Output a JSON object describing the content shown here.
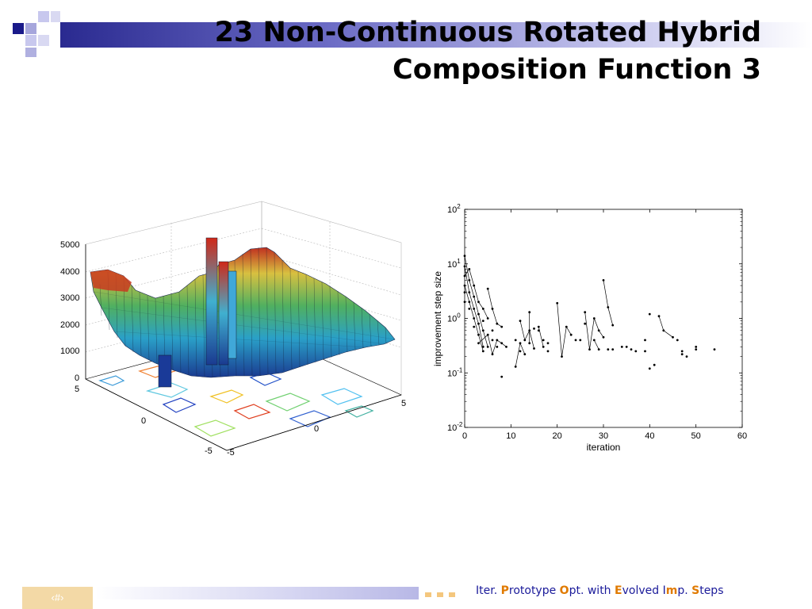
{
  "slide": {
    "title_line1": "23 Non-Continuous Rotated Hybrid",
    "title_line2": "Composition Function 3",
    "slide_number": "‹#›",
    "footer": {
      "parts": [
        {
          "text": "Iter. ",
          "hl": false
        },
        {
          "text": "P",
          "hl": true
        },
        {
          "text": "rototype ",
          "hl": false
        },
        {
          "text": "O",
          "hl": true
        },
        {
          "text": "pt. with ",
          "hl": false
        },
        {
          "text": "E",
          "hl": true
        },
        {
          "text": "volved ",
          "hl": false
        },
        {
          "text": "I",
          "hl": false
        },
        {
          "text": "m",
          "hl": true
        },
        {
          "text": "p. ",
          "hl": false
        },
        {
          "text": "S",
          "hl": true
        },
        {
          "text": "teps",
          "hl": false
        }
      ]
    },
    "colors": {
      "accent": "#1a1a9a",
      "highlight": "#e07a00",
      "band": "#2a2a90"
    }
  },
  "surface_plot": {
    "type": "surface3d",
    "z_ticks": [
      "5000",
      "4000",
      "3000",
      "2000",
      "1000",
      "0"
    ],
    "x_ticks": [
      "5",
      "0",
      "-5"
    ],
    "y_ticks": [
      "5",
      "0",
      "-5"
    ]
  },
  "chart_data": {
    "type": "scatter",
    "xlabel": "iteration",
    "ylabel": "improvement step size",
    "xlim": [
      0,
      60
    ],
    "ylim": [
      0.01,
      100
    ],
    "yscale": "log",
    "x_ticks": [
      "0",
      "10",
      "20",
      "30",
      "40",
      "50",
      "60"
    ],
    "y_ticks": [
      {
        "base": "10",
        "exp": "2"
      },
      {
        "base": "10",
        "exp": "1"
      },
      {
        "base": "10",
        "exp": "0"
      },
      {
        "base": "10",
        "exp": "-1"
      },
      {
        "base": "10",
        "exp": "-2"
      }
    ],
    "series": [
      {
        "points": [
          [
            0,
            14
          ],
          [
            0,
            9
          ],
          [
            0,
            6
          ],
          [
            0,
            4
          ],
          [
            0,
            3
          ],
          [
            0,
            2
          ],
          [
            1,
            8
          ],
          [
            1,
            5
          ],
          [
            1,
            3
          ],
          [
            1,
            2
          ],
          [
            1,
            1.5
          ],
          [
            2,
            4
          ],
          [
            2,
            2.5
          ],
          [
            2,
            1.5
          ],
          [
            2,
            1
          ],
          [
            2,
            0.7
          ],
          [
            3,
            2
          ],
          [
            3,
            1.2
          ],
          [
            3,
            0.8
          ],
          [
            3,
            0.5
          ],
          [
            3,
            0.35
          ],
          [
            4,
            1.5
          ],
          [
            4,
            0.9
          ],
          [
            4,
            0.6
          ],
          [
            4,
            0.3
          ],
          [
            4,
            0.25
          ],
          [
            5,
            3.5
          ],
          [
            5,
            1
          ],
          [
            5,
            0.5
          ],
          [
            5,
            0.3
          ],
          [
            6,
            1.5
          ],
          [
            6,
            0.6
          ],
          [
            6,
            0.4
          ],
          [
            6,
            0.22
          ],
          [
            7,
            0.8
          ],
          [
            7,
            0.4
          ],
          [
            7,
            0.3
          ],
          [
            8,
            0.7
          ],
          [
            8,
            0.35
          ],
          [
            8,
            0.085
          ],
          [
            9,
            0.3
          ],
          [
            11,
            0.13
          ],
          [
            11,
            0.4
          ],
          [
            12,
            0.9
          ],
          [
            12,
            0.35
          ],
          [
            12,
            0.25
          ],
          [
            13,
            0.22
          ],
          [
            13,
            0.4
          ],
          [
            14,
            1.3
          ],
          [
            14,
            0.6
          ],
          [
            14,
            0.35
          ],
          [
            15,
            0.65
          ],
          [
            15,
            0.28
          ],
          [
            16,
            0.7
          ],
          [
            16,
            0.6
          ],
          [
            17,
            0.4
          ],
          [
            17,
            0.3
          ],
          [
            18,
            0.35
          ],
          [
            18,
            0.25
          ],
          [
            20,
            1.9
          ],
          [
            21,
            0.2
          ],
          [
            22,
            0.7
          ],
          [
            23,
            0.5
          ],
          [
            24,
            0.4
          ],
          [
            25,
            0.4
          ],
          [
            26,
            1.3
          ],
          [
            26,
            0.8
          ],
          [
            27,
            0.27
          ],
          [
            28,
            1
          ],
          [
            28,
            0.4
          ],
          [
            29,
            0.6
          ],
          [
            29,
            0.27
          ],
          [
            30,
            5
          ],
          [
            30,
            0.45
          ],
          [
            31,
            1.6
          ],
          [
            31,
            0.27
          ],
          [
            32,
            0.27
          ],
          [
            32,
            0.75
          ],
          [
            34,
            0.3
          ],
          [
            35,
            0.3
          ],
          [
            36,
            0.27
          ],
          [
            37,
            0.25
          ],
          [
            39,
            0.25
          ],
          [
            39,
            0.4
          ],
          [
            40,
            1.2
          ],
          [
            40,
            0.12
          ],
          [
            41,
            0.14
          ],
          [
            42,
            1.1
          ],
          [
            43,
            0.6
          ],
          [
            45,
            0.45
          ],
          [
            46,
            0.4
          ],
          [
            47,
            0.22
          ],
          [
            47,
            0.25
          ],
          [
            48,
            0.2
          ],
          [
            50,
            0.3
          ],
          [
            50,
            0.27
          ],
          [
            54,
            0.27
          ]
        ]
      }
    ],
    "segments": [
      [
        [
          0,
          14
        ],
        [
          1,
          5
        ],
        [
          2,
          2.5
        ],
        [
          3,
          1.2
        ],
        [
          4,
          0.6
        ],
        [
          5,
          0.3
        ]
      ],
      [
        [
          0,
          9
        ],
        [
          1,
          3
        ],
        [
          2,
          1.5
        ],
        [
          3,
          0.8
        ],
        [
          4,
          0.3
        ]
      ],
      [
        [
          0,
          6
        ],
        [
          1,
          8
        ],
        [
          2,
          4
        ],
        [
          3,
          2
        ],
        [
          4,
          1.5
        ],
        [
          5,
          1
        ]
      ],
      [
        [
          0,
          4
        ],
        [
          1,
          2
        ],
        [
          2,
          1
        ],
        [
          3,
          0.5
        ],
        [
          4,
          0.25
        ]
      ],
      [
        [
          5,
          3.5
        ],
        [
          6,
          1.5
        ],
        [
          7,
          0.8
        ],
        [
          8,
          0.7
        ]
      ],
      [
        [
          3,
          0.35
        ],
        [
          5,
          0.5
        ],
        [
          6,
          0.22
        ],
        [
          7,
          0.4
        ],
        [
          8,
          0.35
        ],
        [
          9,
          0.3
        ]
      ],
      [
        [
          11,
          0.13
        ],
        [
          12,
          0.35
        ],
        [
          13,
          0.22
        ]
      ],
      [
        [
          12,
          0.9
        ],
        [
          13,
          0.4
        ],
        [
          14,
          0.6
        ],
        [
          15,
          0.28
        ]
      ],
      [
        [
          14,
          1.3
        ],
        [
          14,
          0.35
        ]
      ],
      [
        [
          16,
          0.7
        ],
        [
          17,
          0.3
        ]
      ],
      [
        [
          20,
          1.9
        ],
        [
          21,
          0.2
        ],
        [
          22,
          0.7
        ],
        [
          23,
          0.5
        ]
      ],
      [
        [
          26,
          1.3
        ],
        [
          27,
          0.27
        ],
        [
          28,
          1
        ],
        [
          29,
          0.6
        ],
        [
          30,
          0.45
        ]
      ],
      [
        [
          30,
          5
        ],
        [
          31,
          1.6
        ],
        [
          32,
          0.75
        ]
      ],
      [
        [
          28,
          0.4
        ],
        [
          29,
          0.27
        ]
      ],
      [
        [
          42,
          1.1
        ],
        [
          43,
          0.6
        ],
        [
          45,
          0.45
        ]
      ]
    ]
  }
}
